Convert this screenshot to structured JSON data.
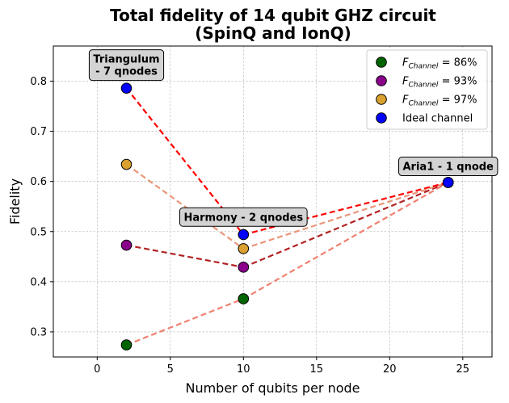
{
  "chart_data": {
    "type": "scatter",
    "title_lines": [
      "Total fidelity of 14 qubit GHZ circuit",
      "(SpinQ and IonQ)"
    ],
    "xlabel": "Number of qubits per node",
    "ylabel": "Fidelity",
    "xlim": [
      -3,
      27
    ],
    "ylim": [
      0.25,
      0.87
    ],
    "xticks": [
      0,
      5,
      10,
      15,
      20,
      25
    ],
    "yticks": [
      0.3,
      0.4,
      0.5,
      0.6,
      0.7,
      0.8
    ],
    "grid": true,
    "legend_position": "top-right",
    "series": [
      {
        "name_main": "F",
        "name_sub": "Channel",
        "name_suffix": " = 86%",
        "color": "#006400",
        "points": [
          {
            "x": 2,
            "y": 0.274
          },
          {
            "x": 10,
            "y": 0.366
          },
          {
            "x": 24,
            "y": 0.598
          }
        ]
      },
      {
        "name_main": "F",
        "name_sub": "Channel",
        "name_suffix": " = 93%",
        "color": "#8b008b",
        "points": [
          {
            "x": 2,
            "y": 0.473
          },
          {
            "x": 10,
            "y": 0.429
          },
          {
            "x": 24,
            "y": 0.598
          }
        ]
      },
      {
        "name_main": "F",
        "name_sub": "Channel",
        "name_suffix": " = 97%",
        "color": "#daa030",
        "points": [
          {
            "x": 2,
            "y": 0.634
          },
          {
            "x": 10,
            "y": 0.466
          },
          {
            "x": 24,
            "y": 0.598
          }
        ]
      },
      {
        "name_main": "Ideal channel",
        "name_sub": "",
        "name_suffix": "",
        "color": "#0000ff",
        "points": [
          {
            "x": 2,
            "y": 0.786
          },
          {
            "x": 10,
            "y": 0.494
          },
          {
            "x": 24,
            "y": 0.598
          }
        ]
      }
    ],
    "lines": [
      {
        "from": [
          2,
          0.274
        ],
        "to": [
          10,
          0.366
        ],
        "color": "#f08070"
      },
      {
        "from": [
          10,
          0.366
        ],
        "to": [
          24,
          0.598
        ],
        "color": "#f08070"
      },
      {
        "from": [
          2,
          0.473
        ],
        "to": [
          10,
          0.429
        ],
        "color": "#b22222"
      },
      {
        "from": [
          10,
          0.429
        ],
        "to": [
          24,
          0.598
        ],
        "color": "#b22222"
      },
      {
        "from": [
          2,
          0.634
        ],
        "to": [
          10,
          0.466
        ],
        "color": "#e9967a"
      },
      {
        "from": [
          10,
          0.466
        ],
        "to": [
          24,
          0.598
        ],
        "color": "#e9967a"
      },
      {
        "from": [
          2,
          0.786
        ],
        "to": [
          10,
          0.494
        ],
        "color": "#ff0000"
      },
      {
        "from": [
          10,
          0.494
        ],
        "to": [
          24,
          0.598
        ],
        "color": "#ff0000"
      }
    ],
    "annotations": [
      {
        "lines": [
          "Triangulum",
          "- 7 qnodes"
        ],
        "anchor_x": 2,
        "anchor_y": 0.832
      },
      {
        "lines": [
          "Harmony - 2 qnodes"
        ],
        "anchor_x": 10,
        "anchor_y": 0.529
      },
      {
        "lines": [
          "Aria1 - 1 qnode"
        ],
        "anchor_x": 24,
        "anchor_y": 0.63
      }
    ]
  }
}
